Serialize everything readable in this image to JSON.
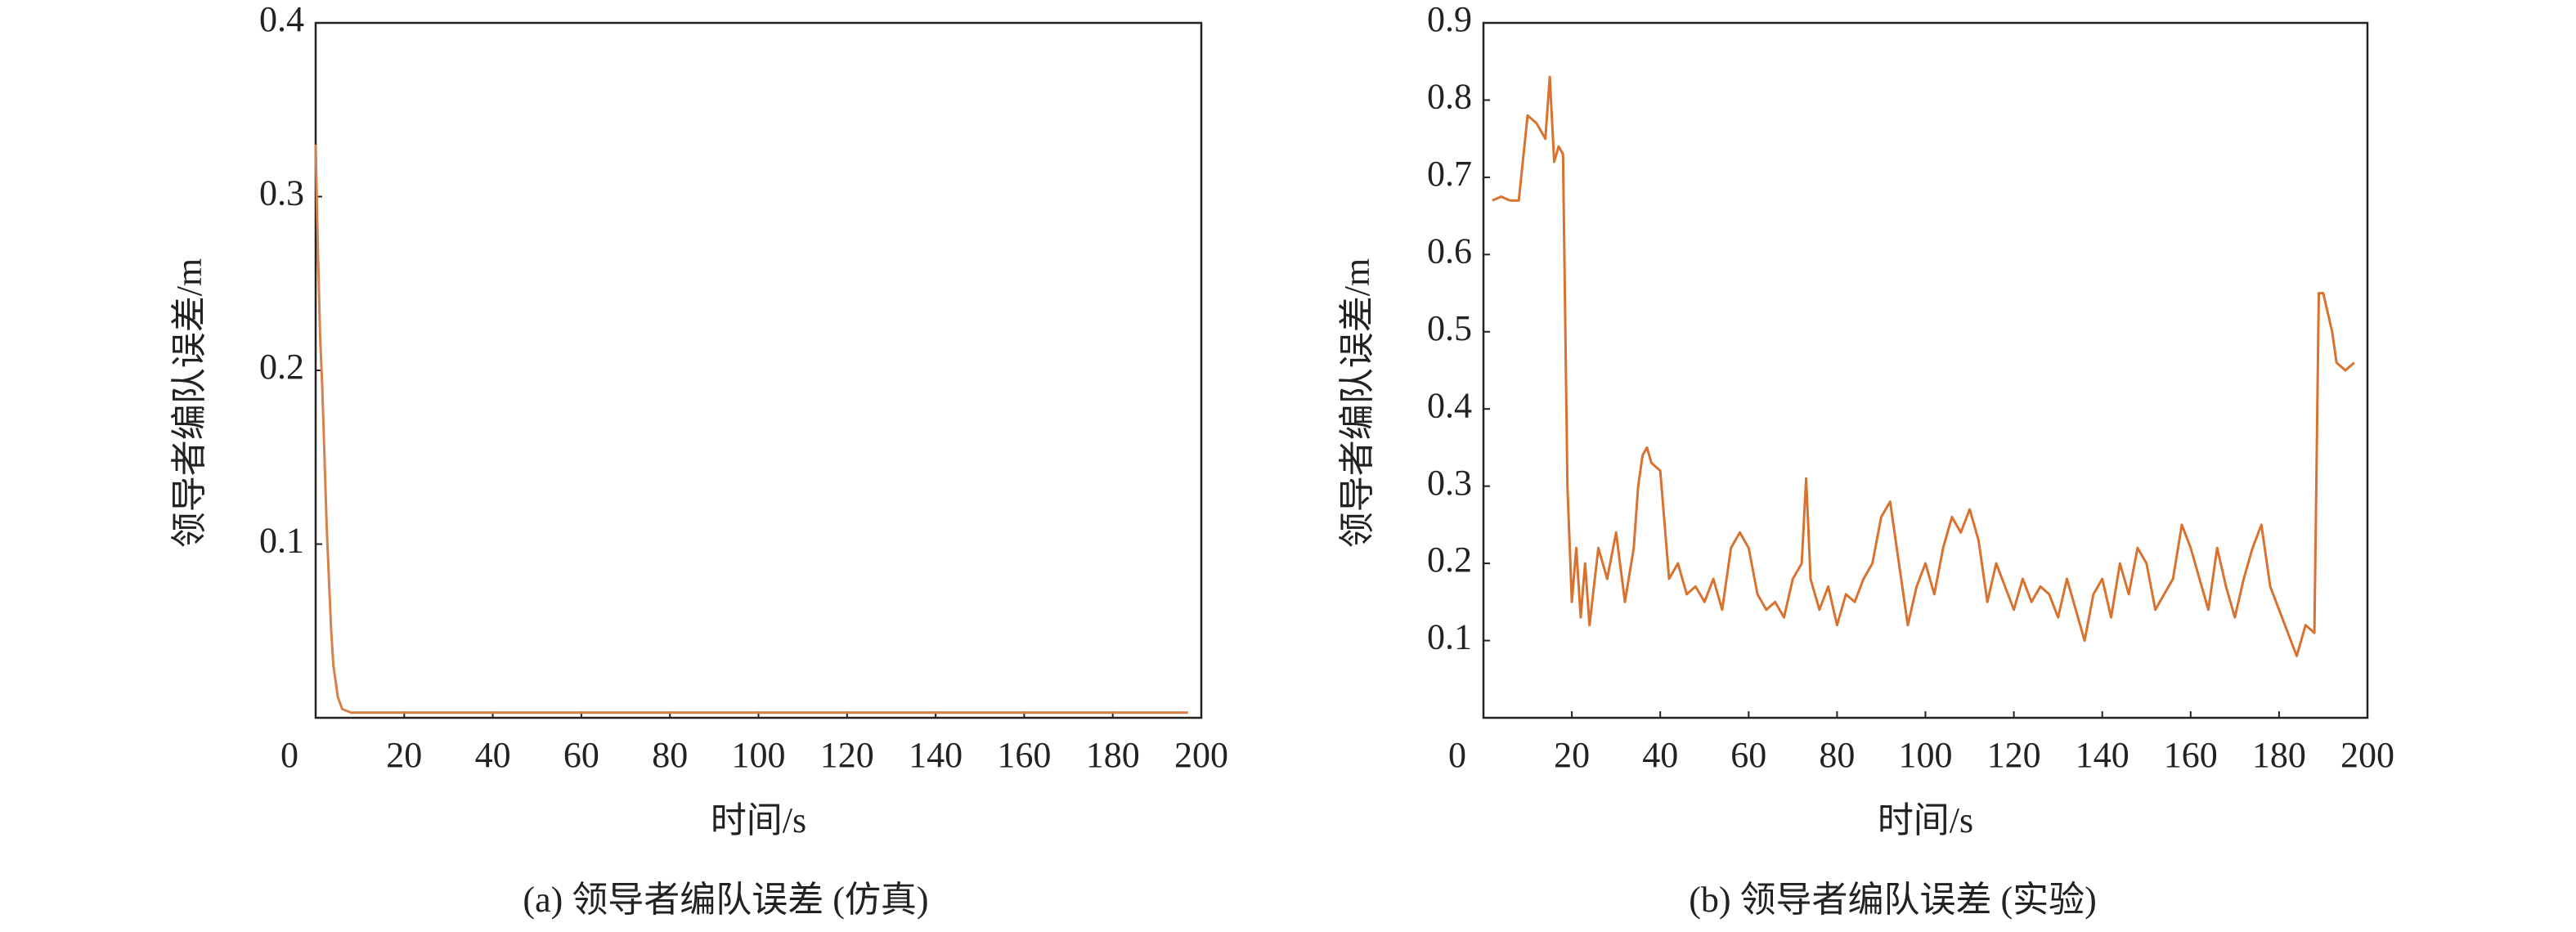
{
  "chart_data": [
    {
      "type": "line",
      "xlabel": "时间/s",
      "ylabel": "领导者编队误差/m",
      "caption": "(a) 领导者编队误差 (仿真)",
      "color": "#d8804a",
      "x": [
        0,
        0.5,
        1,
        1.5,
        2,
        2.5,
        3,
        3.5,
        4,
        5,
        6,
        8,
        10,
        20,
        40,
        60,
        80,
        100,
        120,
        140,
        160,
        180,
        197
      ],
      "values": [
        0.33,
        0.27,
        0.22,
        0.19,
        0.15,
        0.11,
        0.08,
        0.05,
        0.03,
        0.012,
        0.005,
        0.003,
        0.003,
        0.003,
        0.003,
        0.003,
        0.003,
        0.003,
        0.003,
        0.003,
        0.003,
        0.003,
        0.003
      ],
      "xlim": [
        0,
        200
      ],
      "ylim": [
        0,
        0.4
      ],
      "xticks": [
        0,
        20,
        40,
        60,
        80,
        100,
        120,
        140,
        160,
        180,
        200
      ],
      "yticks": [
        0.1,
        0.2,
        0.3,
        0.4
      ]
    },
    {
      "type": "line",
      "xlabel": "时间/s",
      "ylabel": "领导者编队误差/m",
      "caption": "(b) 领导者编队误差 (实验)",
      "color": "#d9722e",
      "x": [
        2,
        4,
        6,
        8,
        10,
        12,
        14,
        15,
        16,
        17,
        18,
        19,
        20,
        21,
        22,
        23,
        24,
        26,
        28,
        30,
        32,
        34,
        35,
        36,
        37,
        38,
        40,
        42,
        44,
        46,
        48,
        50,
        52,
        54,
        56,
        58,
        60,
        62,
        64,
        66,
        68,
        70,
        72,
        73,
        74,
        76,
        78,
        80,
        82,
        84,
        86,
        88,
        90,
        92,
        94,
        96,
        98,
        100,
        102,
        104,
        106,
        108,
        110,
        112,
        114,
        116,
        118,
        120,
        122,
        124,
        126,
        128,
        130,
        132,
        134,
        136,
        138,
        140,
        142,
        144,
        146,
        148,
        150,
        152,
        154,
        156,
        158,
        160,
        162,
        164,
        166,
        168,
        170,
        172,
        174,
        176,
        178,
        180,
        182,
        184,
        186,
        188,
        189,
        190,
        192,
        193,
        195,
        197
      ],
      "values": [
        0.67,
        0.675,
        0.67,
        0.67,
        0.78,
        0.77,
        0.75,
        0.83,
        0.72,
        0.74,
        0.73,
        0.3,
        0.15,
        0.22,
        0.13,
        0.2,
        0.12,
        0.22,
        0.18,
        0.24,
        0.15,
        0.22,
        0.3,
        0.34,
        0.35,
        0.33,
        0.32,
        0.18,
        0.2,
        0.16,
        0.17,
        0.15,
        0.18,
        0.14,
        0.22,
        0.24,
        0.22,
        0.16,
        0.14,
        0.15,
        0.13,
        0.18,
        0.2,
        0.31,
        0.18,
        0.14,
        0.17,
        0.12,
        0.16,
        0.15,
        0.18,
        0.2,
        0.26,
        0.28,
        0.2,
        0.12,
        0.17,
        0.2,
        0.16,
        0.22,
        0.26,
        0.24,
        0.27,
        0.23,
        0.15,
        0.2,
        0.17,
        0.14,
        0.18,
        0.15,
        0.17,
        0.16,
        0.13,
        0.18,
        0.14,
        0.1,
        0.16,
        0.18,
        0.13,
        0.2,
        0.16,
        0.22,
        0.2,
        0.14,
        0.16,
        0.18,
        0.25,
        0.22,
        0.18,
        0.14,
        0.22,
        0.17,
        0.13,
        0.18,
        0.22,
        0.25,
        0.17,
        0.14,
        0.11,
        0.08,
        0.12,
        0.11,
        0.55,
        0.55,
        0.5,
        0.46,
        0.45,
        0.46
      ],
      "xlim": [
        0,
        200
      ],
      "ylim": [
        0,
        0.9
      ],
      "xticks": [
        0,
        20,
        40,
        60,
        80,
        100,
        120,
        140,
        160,
        180,
        200
      ],
      "yticks": [
        0.1,
        0.2,
        0.3,
        0.4,
        0.5,
        0.6,
        0.7,
        0.8,
        0.9
      ]
    }
  ]
}
